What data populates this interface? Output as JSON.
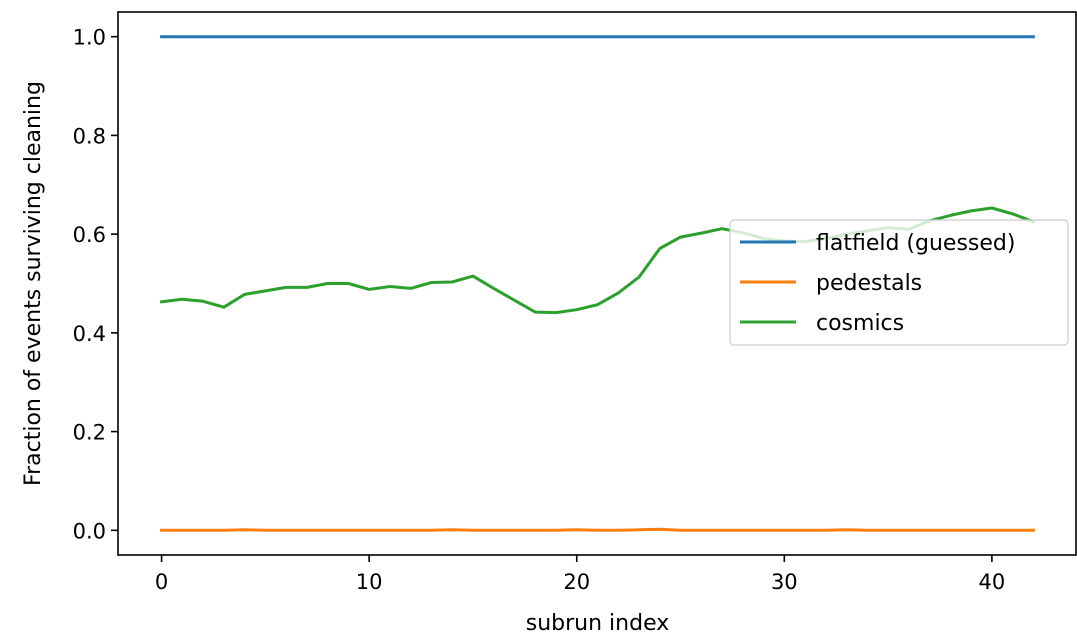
{
  "chart_data": {
    "type": "line",
    "title": "",
    "xlabel": "subrun index",
    "ylabel": "Fraction of events surviving cleaning",
    "xlim": [
      -2.1,
      44.1
    ],
    "ylim": [
      -0.05,
      1.05
    ],
    "xticks": [
      0,
      10,
      20,
      30,
      40
    ],
    "xtick_labels": [
      "0",
      "10",
      "20",
      "30",
      "40"
    ],
    "yticks": [
      0.0,
      0.2,
      0.4,
      0.6,
      0.8,
      1.0
    ],
    "ytick_labels": [
      "0.0",
      "0.2",
      "0.4",
      "0.6",
      "0.8",
      "1.0"
    ],
    "grid": false,
    "legend_position": "center-right",
    "x": [
      0,
      1,
      2,
      3,
      4,
      5,
      6,
      7,
      8,
      9,
      10,
      11,
      12,
      13,
      14,
      15,
      16,
      17,
      18,
      19,
      20,
      21,
      22,
      23,
      24,
      25,
      26,
      27,
      28,
      29,
      30,
      31,
      32,
      33,
      34,
      35,
      36,
      37,
      38,
      39,
      40,
      41,
      42
    ],
    "series": [
      {
        "name": "flatfield (guessed)",
        "color": "#1f77b4",
        "values": [
          1,
          1,
          1,
          1,
          1,
          1,
          1,
          1,
          1,
          1,
          1,
          1,
          1,
          1,
          1,
          1,
          1,
          1,
          1,
          1,
          1,
          1,
          1,
          1,
          1,
          1,
          1,
          1,
          1,
          1,
          1,
          1,
          1,
          1,
          1,
          1,
          1,
          1,
          1,
          1,
          1,
          1,
          1
        ]
      },
      {
        "name": "pedestals",
        "color": "#ff7f0e",
        "values": [
          0,
          0,
          0,
          0,
          0.001,
          0,
          0,
          0,
          0,
          0,
          0,
          0,
          0,
          0,
          0.001,
          0,
          0,
          0,
          0,
          0,
          0.001,
          0,
          0,
          0.001,
          0.002,
          0,
          0,
          0,
          0,
          0,
          0,
          0,
          0,
          0.001,
          0,
          0,
          0,
          0,
          0,
          0,
          0,
          0,
          0
        ]
      },
      {
        "name": "cosmics",
        "color": "#2ca02c",
        "values": [
          0.463,
          0.468,
          0.464,
          0.452,
          0.478,
          0.485,
          0.492,
          0.492,
          0.5,
          0.5,
          0.488,
          0.494,
          0.49,
          0.502,
          0.503,
          0.515,
          0.49,
          0.466,
          0.442,
          0.441,
          0.447,
          0.457,
          0.481,
          0.513,
          0.571,
          0.594,
          0.602,
          0.611,
          0.603,
          0.591,
          0.586,
          0.585,
          0.591,
          0.6,
          0.607,
          0.613,
          0.61,
          0.627,
          0.638,
          0.647,
          0.653,
          0.641,
          0.625
        ]
      }
    ]
  }
}
